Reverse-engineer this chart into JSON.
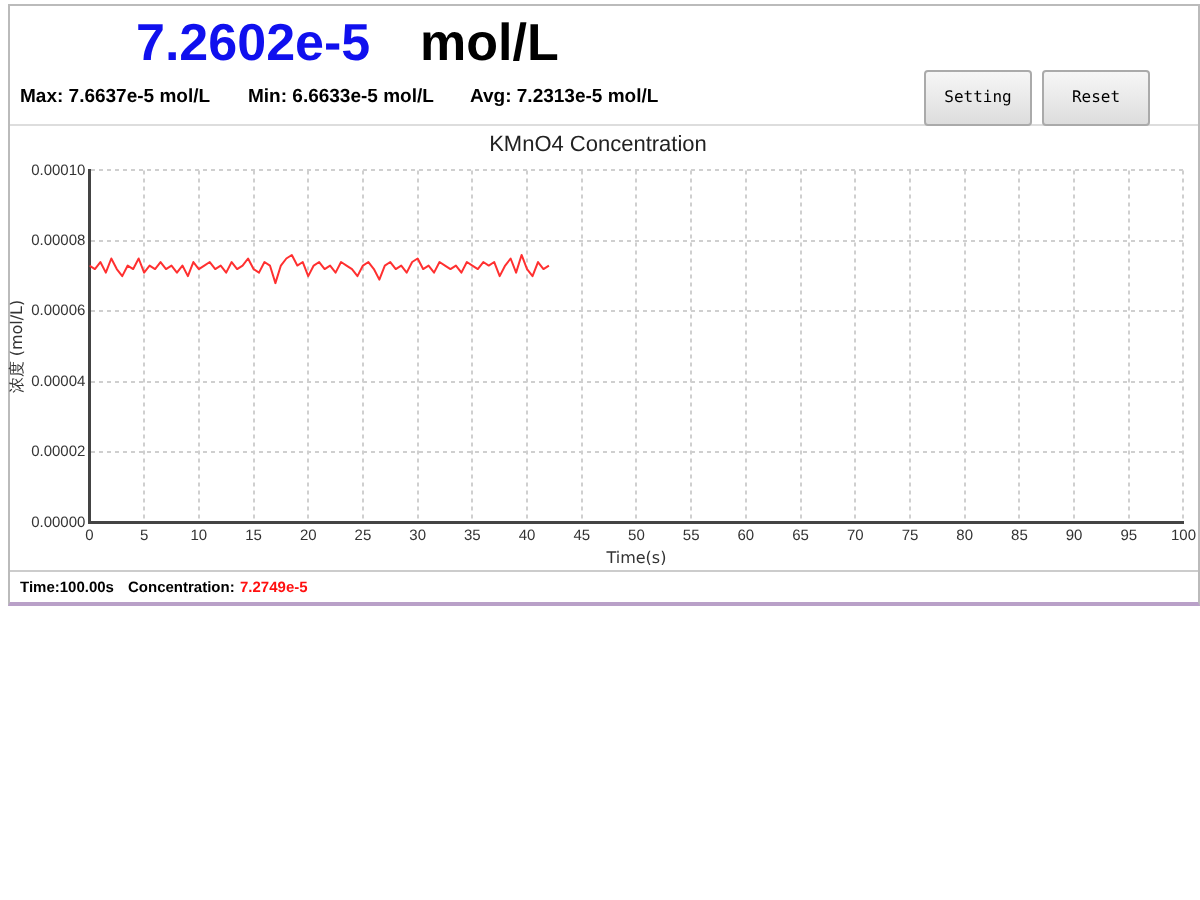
{
  "chart_data": {
    "type": "line",
    "title": "KMnO4 Concentration",
    "xlabel": "Time(s)",
    "ylabel": "浓度 (mol/L)",
    "xlim": [
      0,
      100
    ],
    "xticks": [
      0,
      5,
      10,
      15,
      20,
      25,
      30,
      35,
      40,
      45,
      50,
      55,
      60,
      65,
      70,
      75,
      80,
      85,
      90,
      95,
      100
    ],
    "ylim": [
      0,
      0.0001
    ],
    "yticks": [
      {
        "value": 0,
        "label": "0.00000"
      },
      {
        "value": 2e-05,
        "label": "0.00002"
      },
      {
        "value": 4e-05,
        "label": "0.00004"
      },
      {
        "value": 6e-05,
        "label": "0.00006"
      },
      {
        "value": 8e-05,
        "label": "0.00008"
      },
      {
        "value": 0.0001,
        "label": "0.00010"
      }
    ],
    "grid": true,
    "legend": false,
    "marker": "none",
    "line_style": "solid",
    "series": [
      {
        "color": "#ff3030",
        "x": [
          0,
          0.5,
          1,
          1.5,
          2,
          2.5,
          3,
          3.5,
          4,
          4.5,
          5,
          5.5,
          6,
          6.5,
          7,
          7.5,
          8,
          8.5,
          9,
          9.5,
          10,
          10.5,
          11,
          11.5,
          12,
          12.5,
          13,
          13.5,
          14,
          14.5,
          15,
          15.5,
          16,
          16.5,
          17,
          17.5,
          18,
          18.5,
          19,
          19.5,
          20,
          20.5,
          21,
          21.5,
          22,
          22.5,
          23,
          23.5,
          24,
          24.5,
          25,
          25.5,
          26,
          26.5,
          27,
          27.5,
          28,
          28.5,
          29,
          29.5,
          30,
          30.5,
          31,
          31.5,
          32,
          32.5,
          33,
          33.5,
          34,
          34.5,
          35,
          35.5,
          36,
          36.5,
          37,
          37.5,
          38,
          38.5,
          39,
          39.5,
          40,
          40.5,
          41,
          41.5,
          42
        ],
        "values": [
          7.3e-05,
          7.2e-05,
          7.4e-05,
          7.1e-05,
          7.5e-05,
          7.2e-05,
          7e-05,
          7.3e-05,
          7.2e-05,
          7.5e-05,
          7.1e-05,
          7.3e-05,
          7.2e-05,
          7.4e-05,
          7.2e-05,
          7.3e-05,
          7.1e-05,
          7.3e-05,
          7e-05,
          7.4e-05,
          7.2e-05,
          7.3e-05,
          7.4e-05,
          7.2e-05,
          7.3e-05,
          7.1e-05,
          7.4e-05,
          7.2e-05,
          7.3e-05,
          7.5e-05,
          7.2e-05,
          7.1e-05,
          7.4e-05,
          7.3e-05,
          6.8e-05,
          7.3e-05,
          7.5e-05,
          7.6e-05,
          7.3e-05,
          7.4e-05,
          7e-05,
          7.3e-05,
          7.4e-05,
          7.2e-05,
          7.3e-05,
          7.1e-05,
          7.4e-05,
          7.3e-05,
          7.2e-05,
          7e-05,
          7.3e-05,
          7.4e-05,
          7.2e-05,
          6.9e-05,
          7.3e-05,
          7.4e-05,
          7.2e-05,
          7.3e-05,
          7.1e-05,
          7.4e-05,
          7.5e-05,
          7.2e-05,
          7.3e-05,
          7.1e-05,
          7.4e-05,
          7.3e-05,
          7.2e-05,
          7.3e-05,
          7.1e-05,
          7.4e-05,
          7.3e-05,
          7.2e-05,
          7.4e-05,
          7.3e-05,
          7.4e-05,
          7e-05,
          7.3e-05,
          7.5e-05,
          7.1e-05,
          7.6e-05,
          7.2e-05,
          7e-05,
          7.4e-05,
          7.2e-05,
          7.3e-05
        ]
      }
    ],
    "annotations": [
      "7.2602e-5",
      "mol/L",
      "Max: 7.6637e-5 mol/L",
      "Min: 6.6633e-5 mol/L",
      "Avg: 7.2313e-5 mol/L",
      "Setting",
      "Reset",
      "Time:100.00s",
      "Concentration:",
      "7.2749e-5"
    ]
  }
}
